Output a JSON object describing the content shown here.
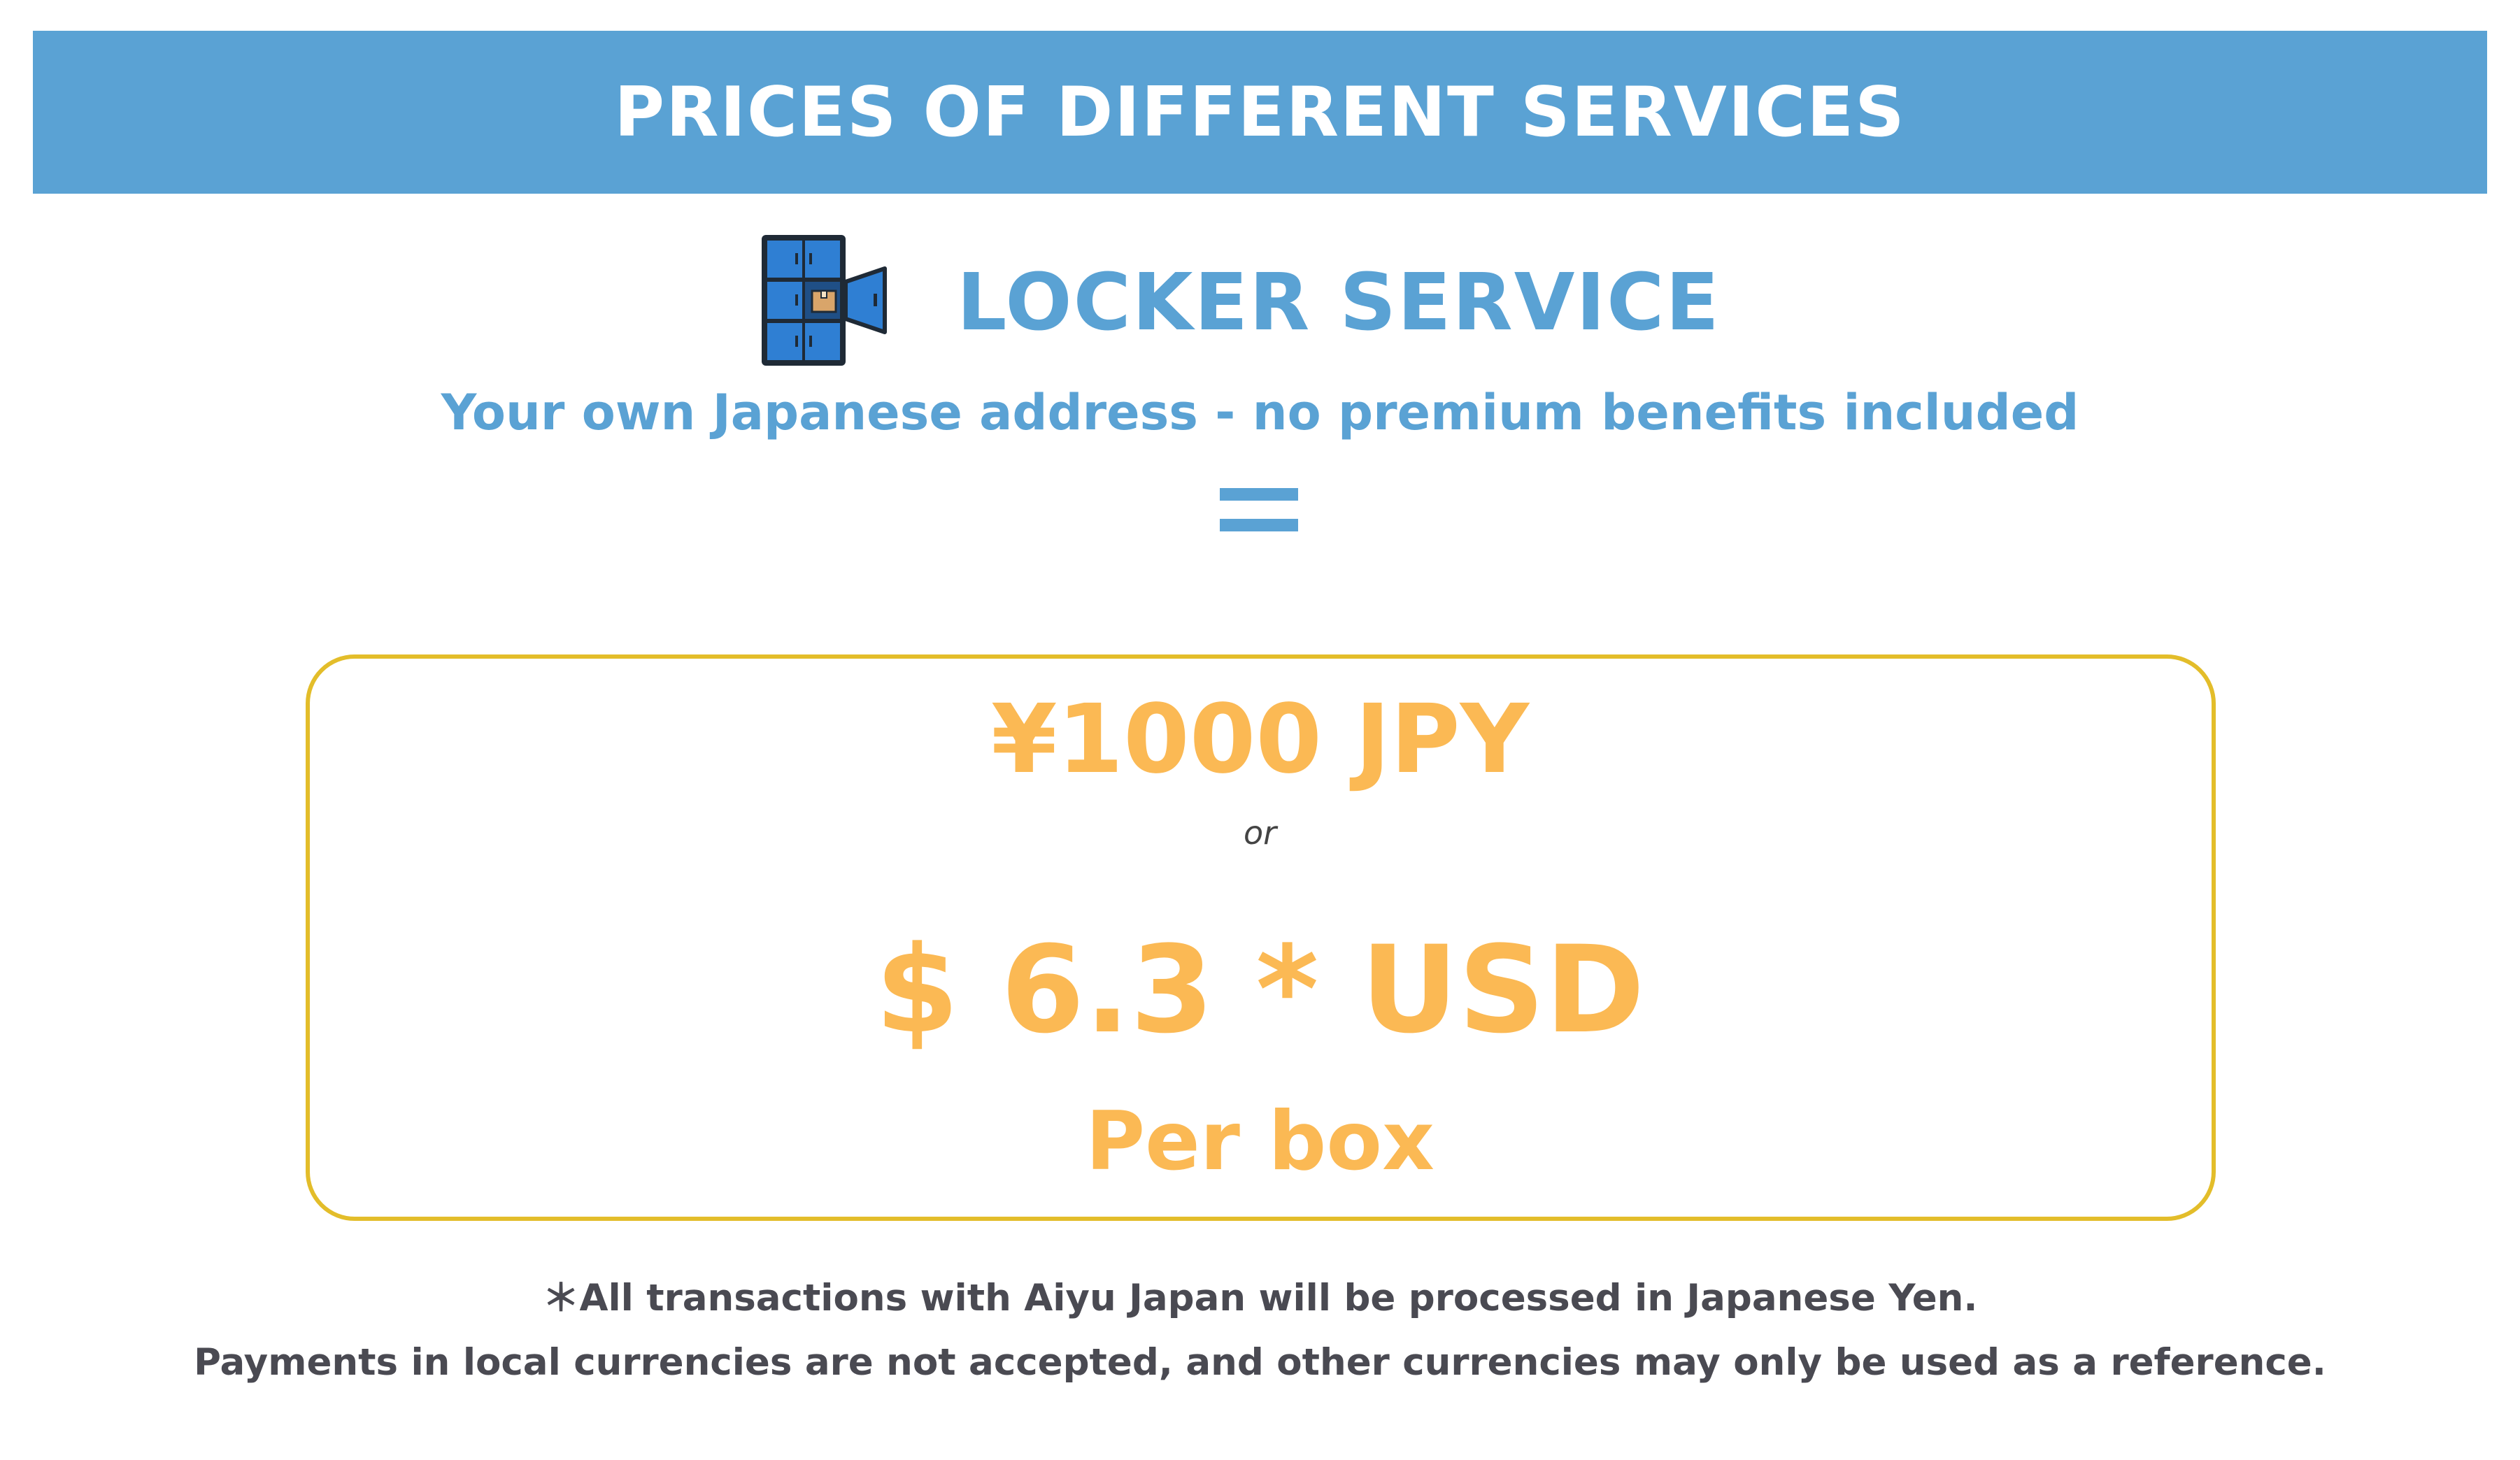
{
  "header": {
    "title": "PRICES OF DIFFERENT SERVICES",
    "background_color": "#5aa2d4",
    "text_color": "#ffffff"
  },
  "service": {
    "icon": "locker-icon",
    "name": "LOCKER SERVICE",
    "subtitle": "Your own Japanese address - no premium benefits included",
    "accent_color": "#5aa2d4"
  },
  "separator": {
    "icon": "equals-icon"
  },
  "pricing": {
    "primary_price": "¥1000 JPY",
    "or_label": "or",
    "secondary_price": "$ 6.3 * USD",
    "unit": "Per box",
    "price_color": "#fbb954",
    "border_color": "#e3bd2a"
  },
  "footnotes": {
    "line1": "＊All transactions with Aiyu Japan will be processed in Japanese Yen.",
    "line2": "Payments in local currencies are not accepted, and other currencies may only be used as a reference."
  }
}
